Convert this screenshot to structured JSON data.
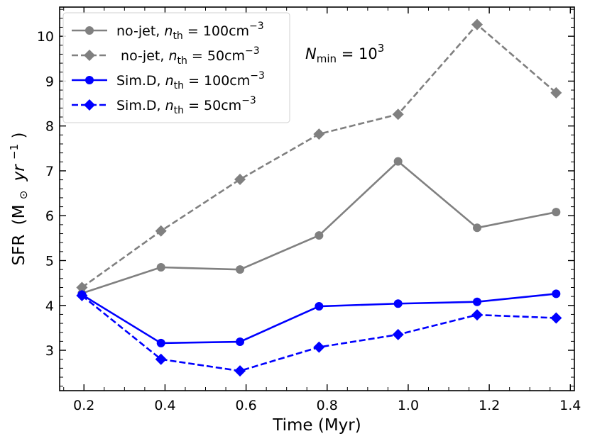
{
  "chart_data": {
    "type": "line",
    "xlabel": "Time (Myr)",
    "ylabel": {
      "prefix": "SFR",
      "unit_pre": "(M",
      "sun": "⊙",
      "yr": "yr",
      "exp": "−1",
      "close": ")"
    },
    "xlim": [
      0.14,
      1.41
    ],
    "ylim": [
      2.1,
      10.65
    ],
    "xticks": [
      0.2,
      0.4,
      0.6,
      0.8,
      1.0,
      1.2,
      1.4
    ],
    "xtick_labels": [
      "0.2",
      "0.4",
      "0.6",
      "0.8",
      "1.0",
      "1.2",
      "1.4"
    ],
    "yticks": [
      3,
      4,
      5,
      6,
      7,
      8,
      9,
      10
    ],
    "ytick_labels": [
      "3",
      "4",
      "5",
      "6",
      "7",
      "8",
      "9",
      "10"
    ],
    "x": [
      0.195,
      0.39,
      0.585,
      0.78,
      0.975,
      1.17,
      1.365
    ],
    "series": [
      {
        "name": "no-jet, n_th = 100cm^-3",
        "color": "#808080",
        "marker": "circle",
        "linestyle": "solid",
        "values": [
          4.27,
          4.85,
          4.8,
          5.56,
          7.21,
          5.73,
          6.08
        ]
      },
      {
        "name": "no-jet, n_th = 50cm^-3",
        "color": "#808080",
        "marker": "diamond",
        "linestyle": "dashed",
        "values": [
          4.4,
          5.66,
          6.81,
          7.82,
          8.26,
          10.26,
          8.74
        ]
      },
      {
        "name": "Sim.D, n_th = 100cm^-3",
        "color": "#0000ff",
        "marker": "circle",
        "linestyle": "solid",
        "values": [
          4.24,
          3.16,
          3.19,
          3.98,
          4.04,
          4.08,
          4.26
        ]
      },
      {
        "name": "Sim.D, n_th = 50cm^-3",
        "color": "#0000ff",
        "marker": "diamond",
        "linestyle": "dashed",
        "values": [
          4.22,
          2.8,
          2.54,
          3.07,
          3.35,
          3.79,
          3.72
        ]
      }
    ],
    "legend": {
      "placement": "top-left",
      "entries": [
        {
          "name": "no-jet",
          "n": "n",
          "sub": "th",
          "value": "100cm",
          "exp": "−3"
        },
        {
          "name": " no-jet",
          "n": "n",
          "sub": "th",
          "value": "50cm",
          "exp": "−3"
        },
        {
          "name": "Sim.D",
          "n": "n",
          "sub": "th",
          "value": "100cm",
          "exp": "−3"
        },
        {
          "name": "Sim.D",
          "n": "n",
          "sub": "th",
          "value": "50cm",
          "exp": "−3"
        }
      ]
    },
    "annotation": {
      "sym": "N",
      "sub": "min",
      "eq": " = 10",
      "exp": "3"
    },
    "grid": false
  }
}
